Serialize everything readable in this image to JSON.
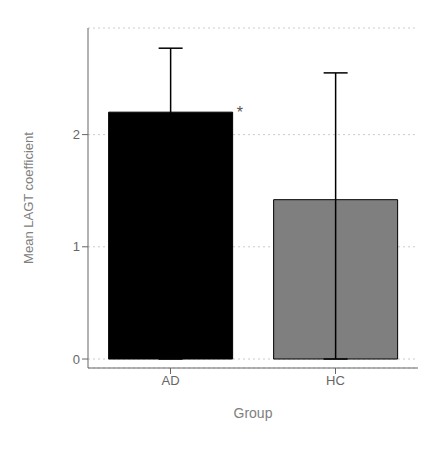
{
  "chart_data": {
    "type": "bar",
    "categories": [
      "AD",
      "HC"
    ],
    "values": [
      2.2,
      1.42
    ],
    "colors": [
      "#000000",
      "#7f7f7f"
    ],
    "errors": {
      "minus": [
        2.2,
        1.42
      ],
      "plus": [
        0.57,
        1.13
      ],
      "color": "#000000"
    },
    "xlabel": "Group",
    "ylabel": "Mean LAGT coefficient",
    "ylim": [
      -0.08,
      2.95
    ],
    "yticks": [
      0,
      1,
      2
    ],
    "grid": true,
    "annotation": "*"
  }
}
